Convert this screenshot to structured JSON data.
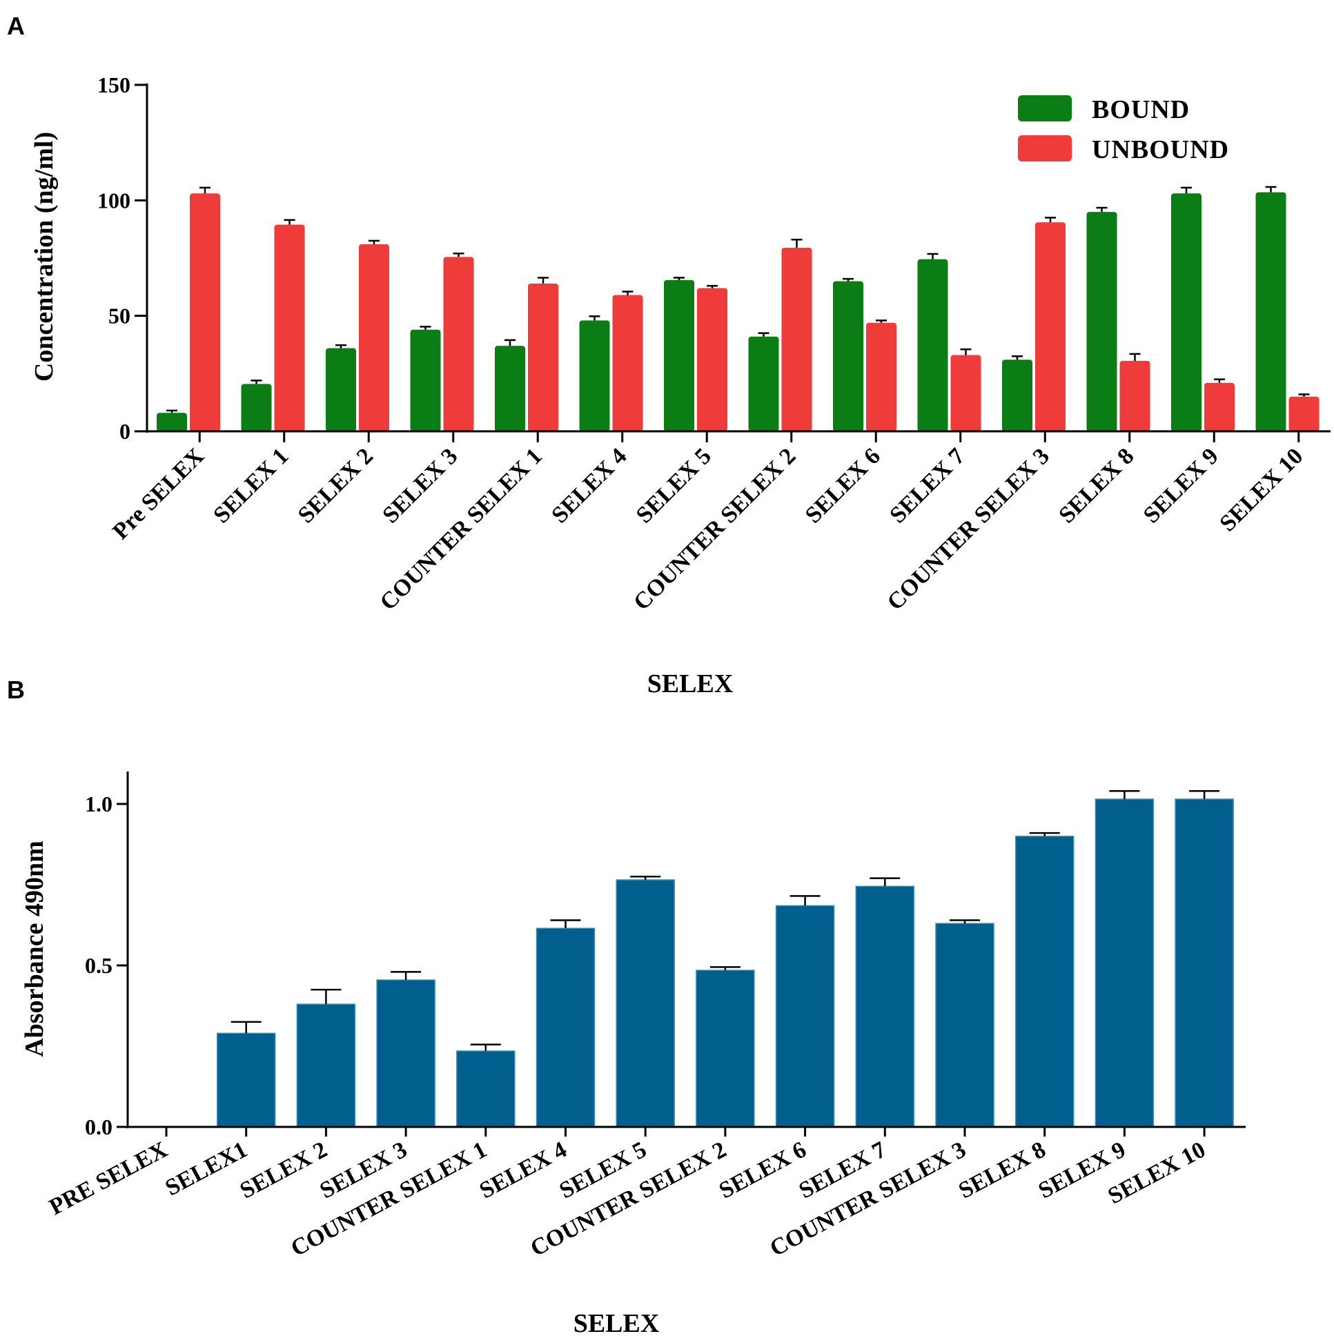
{
  "chart_data": [
    {
      "panel": "A",
      "type": "bar",
      "xlabel": "SELEX",
      "ylabel": "Concentration (ng/ml)",
      "ylim": [
        0,
        150
      ],
      "yticks": [
        "0",
        "50",
        "100",
        "150"
      ],
      "legend_position": "top-right",
      "categories": [
        "Pre SELEX",
        "SELEX 1",
        "SELEX 2",
        "SELEX 3",
        "COUNTER SELEX 1",
        "SELEX 4",
        "SELEX 5",
        "COUNTER SELEX 2",
        "SELEX 6",
        "SELEX 7",
        "COUNTER SELEX 3",
        "SELEX 8",
        "SELEX 9",
        "SELEX 10"
      ],
      "series": [
        {
          "name": "BOUND",
          "color": "#0a7d14",
          "values": [
            8,
            20.5,
            36,
            44,
            37,
            48,
            65.5,
            41,
            65,
            74.5,
            31,
            95,
            103,
            103.5
          ],
          "errors": [
            1,
            1.5,
            1.3,
            1.3,
            2.5,
            1.8,
            1,
            1.5,
            1,
            2.3,
            1.5,
            1.8,
            2.5,
            2.3
          ]
        },
        {
          "name": "UNBOUND",
          "color": "#f03b3b",
          "values": [
            103,
            89.5,
            81,
            75.5,
            64,
            59,
            62,
            79.5,
            47,
            33,
            90.5,
            30.5,
            21,
            15
          ],
          "errors": [
            2.5,
            2,
            1.5,
            1.5,
            2.5,
            1.5,
            1,
            3.5,
            1,
            2.5,
            2,
            3,
            1.5,
            1
          ]
        }
      ]
    },
    {
      "panel": "B",
      "type": "bar",
      "xlabel": "SELEX",
      "ylabel": "Absorbance 490nm",
      "ylim": [
        0,
        1.1
      ],
      "yticks": [
        "0.0",
        "0.5",
        "1.0"
      ],
      "categories": [
        "PRE SELEX",
        "SELEX1",
        "SELEX 2",
        "SELEX 3",
        "COUNTER SELEX 1",
        "SELEX 4",
        "SELEX 5",
        "COUNTER SELEX 2",
        "SELEX 6",
        "SELEX 7",
        "COUNTER SELEX 3",
        "SELEX 8",
        "SELEX 9",
        "SELEX 10"
      ],
      "series": [
        {
          "name": "Absorbance",
          "color": "#005f8c",
          "values": [
            0,
            0.29,
            0.38,
            0.455,
            0.235,
            0.615,
            0.765,
            0.485,
            0.685,
            0.745,
            0.63,
            0.9,
            1.015,
            1.015
          ],
          "errors": [
            0,
            0.035,
            0.045,
            0.025,
            0.02,
            0.025,
            0.01,
            0.01,
            0.03,
            0.025,
            0.01,
            0.01,
            0.025,
            0.025
          ]
        }
      ]
    }
  ]
}
